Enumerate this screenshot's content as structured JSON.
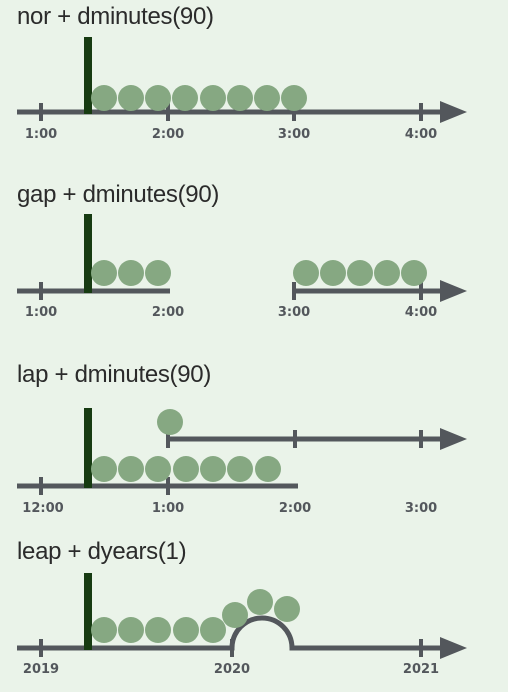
{
  "colors": {
    "background": "#eaf3e9",
    "axis": "#53575c",
    "marker": "#173b12",
    "dot": "#86a882",
    "text": "#2b2b2b"
  },
  "panels": [
    {
      "title": "nor + dminutes(90)",
      "tick_labels": [
        "1:00",
        "2:00",
        "3:00",
        "4:00"
      ]
    },
    {
      "title": "gap + dminutes(90)",
      "tick_labels": [
        "1:00",
        "2:00",
        "3:00",
        "4:00"
      ]
    },
    {
      "title": "lap + dminutes(90)",
      "tick_labels": [
        "12:00",
        "1:00",
        "2:00",
        "3:00"
      ]
    },
    {
      "title": "leap + dyears(1)",
      "tick_labels": [
        "2019",
        "2020",
        "2021"
      ]
    }
  ]
}
